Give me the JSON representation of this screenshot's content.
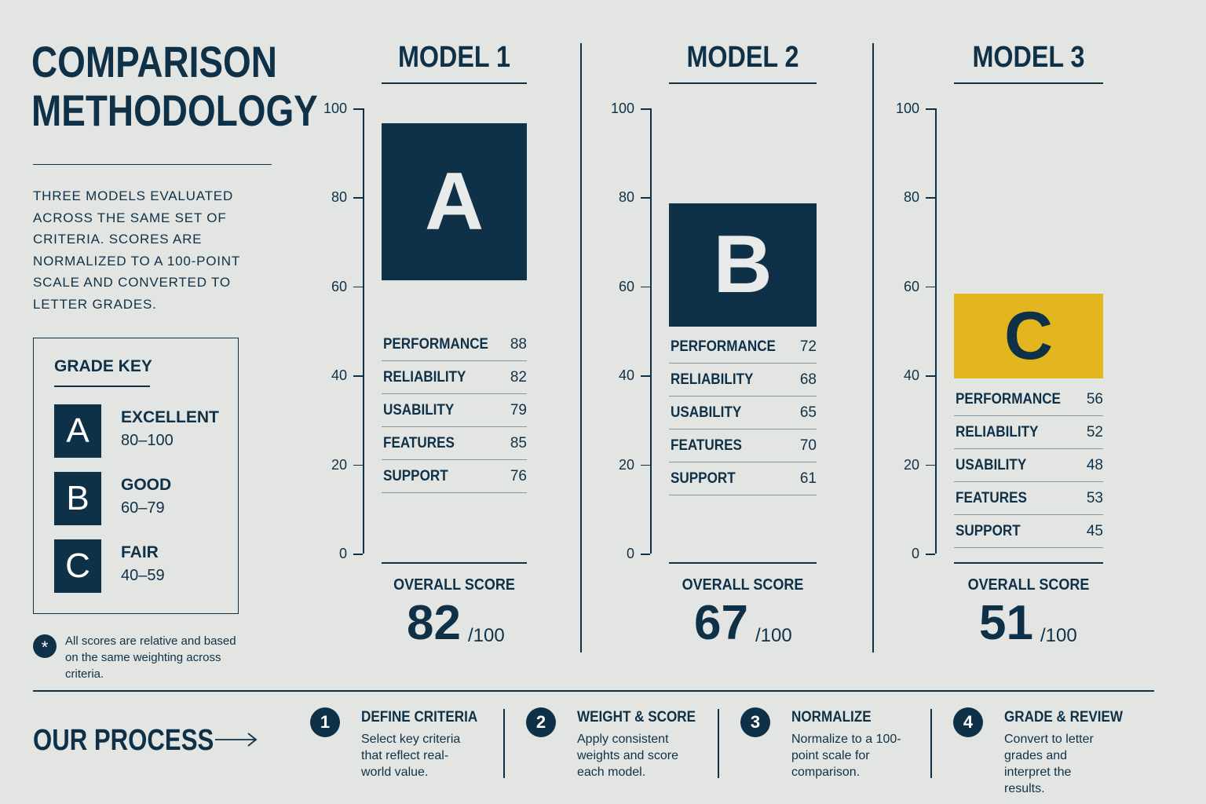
{
  "sidebar": {
    "title": "COMPARISON METHODOLOGY",
    "description": "THREE MODELS EVALUATED ACROSS THE SAME SET OF CRITERIA. SCORES ARE NORMALIZED TO A 100-POINT SCALE AND CONVERTED TO LETTER GRADES.",
    "grade_key": {
      "title": "GRADE KEY",
      "grades": [
        {
          "letter": "A",
          "label": "EXCELLENT",
          "range": "80–100"
        },
        {
          "letter": "B",
          "label": "GOOD",
          "range": "60–79"
        },
        {
          "letter": "C",
          "label": "FAIR",
          "range": "40–59"
        }
      ]
    },
    "note": "All scores are relative and based on the same weighting across criteria."
  },
  "axis_ticks": [
    100,
    80,
    60,
    40,
    20,
    0
  ],
  "models": [
    {
      "name": "MODEL 1",
      "grade": "A",
      "criteria": [
        {
          "name": "PERFORMANCE",
          "score": 88
        },
        {
          "name": "RELIABILITY",
          "score": 82
        },
        {
          "name": "USABILITY",
          "score": 79
        },
        {
          "name": "FEATURES",
          "score": 85
        },
        {
          "name": "SUPPORT",
          "score": 76
        }
      ],
      "overall_label": "OVERALL SCORE",
      "overall": 82,
      "out_of": "/100"
    },
    {
      "name": "MODEL 2",
      "grade": "B",
      "criteria": [
        {
          "name": "PERFORMANCE",
          "score": 72
        },
        {
          "name": "RELIABILITY",
          "score": 68
        },
        {
          "name": "USABILITY",
          "score": 65
        },
        {
          "name": "FEATURES",
          "score": 70
        },
        {
          "name": "SUPPORT",
          "score": 61
        }
      ],
      "overall_label": "OVERALL SCORE",
      "overall": 67,
      "out_of": "/100"
    },
    {
      "name": "MODEL 3",
      "grade": "C",
      "criteria": [
        {
          "name": "PERFORMANCE",
          "score": 56
        },
        {
          "name": "RELIABILITY",
          "score": 52
        },
        {
          "name": "USABILITY",
          "score": 48
        },
        {
          "name": "FEATURES",
          "score": 53
        },
        {
          "name": "SUPPORT",
          "score": 45
        }
      ],
      "overall_label": "OVERALL SCORE",
      "overall": 51,
      "out_of": "/100"
    }
  ],
  "process": {
    "title": "OUR PROCESS",
    "steps": [
      {
        "number": 1,
        "title": "DEFINE CRITERIA",
        "text": "Select key criteria that reflect real-world value."
      },
      {
        "number": 2,
        "title": "WEIGHT & SCORE",
        "text": "Apply consistent weights and score each model."
      },
      {
        "number": 3,
        "title": "NORMALIZE",
        "text": "Normalize to a 100-point scale for comparison."
      },
      {
        "number": 4,
        "title": "GRADE & REVIEW",
        "text": "Convert to letter grades and interpret the results."
      }
    ]
  }
}
